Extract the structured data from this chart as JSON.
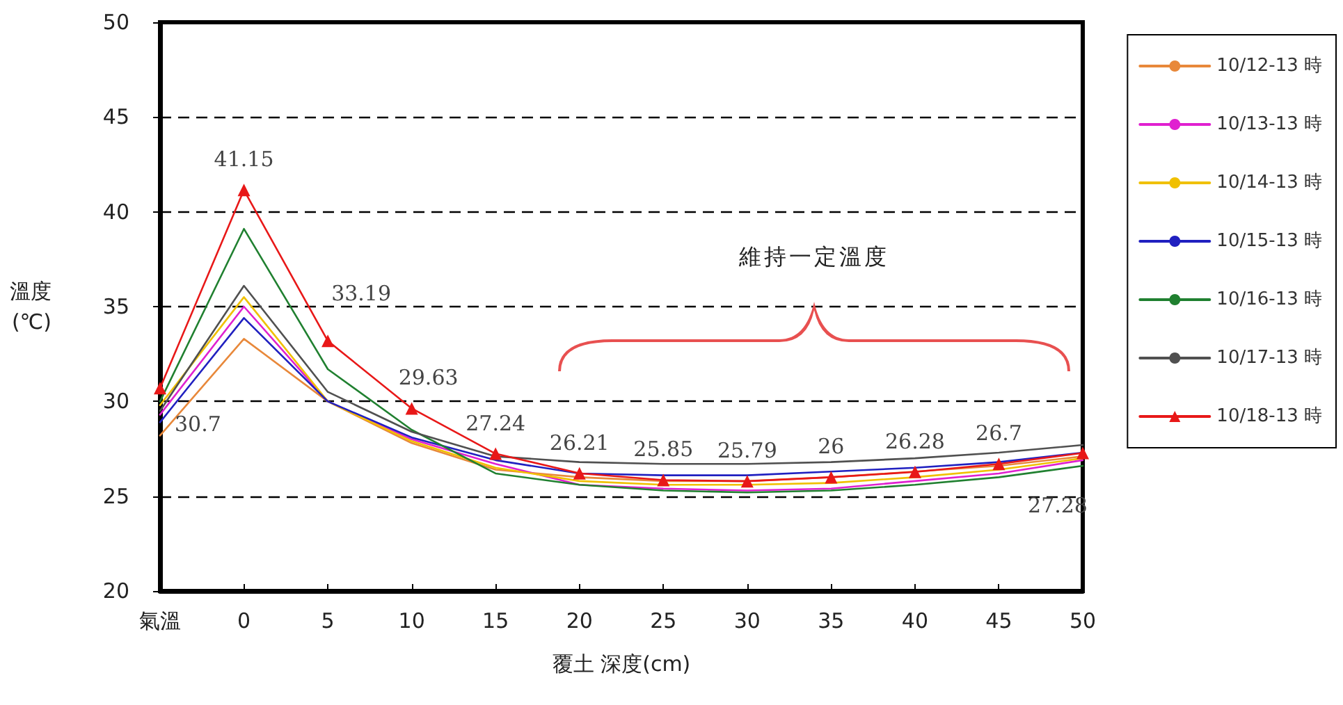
{
  "chart_data": {
    "type": "line",
    "xlabel": "覆土 深度(cm)",
    "ylabel": "溫度\n(℃)",
    "categories": [
      "氣溫",
      "0",
      "5",
      "10",
      "15",
      "20",
      "25",
      "30",
      "35",
      "40",
      "45",
      "50"
    ],
    "ylim": [
      20,
      50
    ],
    "yticks": [
      20,
      25,
      30,
      35,
      40,
      45,
      50
    ],
    "grid": "y",
    "legend": "right",
    "line_style": "solid",
    "annotations": [
      "維持一定溫度"
    ],
    "series": [
      {
        "name": "10/12-13 時",
        "color": "#e8883a",
        "marker": "none",
        "values": [
          28.2,
          33.3,
          30.0,
          27.8,
          26.4,
          26.0,
          25.8,
          25.8,
          26.0,
          26.3,
          26.6,
          27.1
        ]
      },
      {
        "name": "10/13-13 時",
        "color": "#e020d0",
        "marker": "none",
        "values": [
          29.3,
          35.0,
          30.0,
          28.0,
          26.7,
          25.6,
          25.4,
          25.3,
          25.4,
          25.8,
          26.2,
          26.9
        ]
      },
      {
        "name": "10/14-13 時",
        "color": "#f0c000",
        "marker": "none",
        "values": [
          29.8,
          35.5,
          30.0,
          27.9,
          26.5,
          25.8,
          25.6,
          25.6,
          25.7,
          26.0,
          26.4,
          27.0
        ]
      },
      {
        "name": "10/15-13 時",
        "color": "#2020c0",
        "marker": "none",
        "values": [
          28.9,
          34.4,
          30.0,
          28.1,
          26.9,
          26.2,
          26.1,
          26.1,
          26.3,
          26.5,
          26.8,
          27.3
        ]
      },
      {
        "name": "10/16-13 時",
        "color": "#208030",
        "marker": "none",
        "values": [
          30.0,
          39.1,
          31.7,
          28.5,
          26.2,
          25.6,
          25.3,
          25.2,
          25.3,
          25.6,
          26.0,
          26.6
        ]
      },
      {
        "name": "10/17-13 時",
        "color": "#505050",
        "marker": "none",
        "values": [
          29.5,
          36.1,
          30.5,
          28.4,
          27.1,
          26.8,
          26.7,
          26.7,
          26.8,
          27.0,
          27.3,
          27.7
        ]
      },
      {
        "name": "10/18-13 時",
        "color": "#e81818",
        "marker": "triangle",
        "values": [
          30.7,
          41.15,
          33.19,
          29.63,
          27.24,
          26.21,
          25.85,
          25.79,
          26,
          26.28,
          26.7,
          27.28
        ],
        "value_labels": [
          "30.7",
          "41.15",
          "33.19",
          "29.63",
          "27.24",
          "26.21",
          "25.85",
          "25.79",
          "26",
          "26.28",
          "26.7",
          "27.28"
        ]
      }
    ]
  }
}
